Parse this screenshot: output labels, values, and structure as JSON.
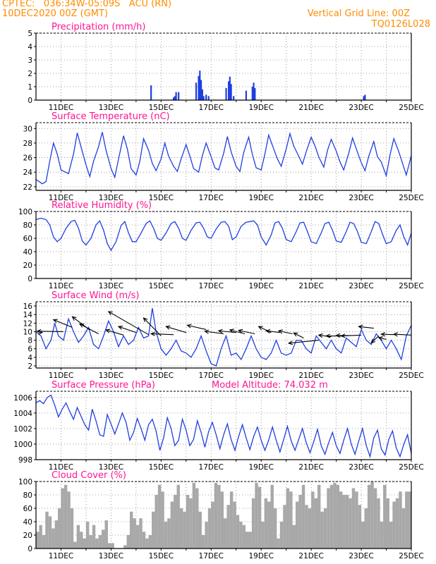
{
  "header": {
    "line1": "CPTEC:   036:34W-05:09S   ACU (RN)",
    "line2": "10DEC2020 00Z (GMT)",
    "right1": "Vertical Grid Line: 00Z",
    "right2": "TQ0126L028"
  },
  "x_tick_labels": [
    "11DEC",
    "13DEC",
    "15DEC",
    "17DEC",
    "19DEC",
    "21DEC",
    "23DEC",
    "25DEC"
  ],
  "colors": {
    "header": "#ff8c00",
    "title": "#ff1493",
    "series": "#1f3fe0",
    "cloud": "#a8a8a8",
    "arrow": "#000000"
  },
  "chart_data": [
    {
      "type": "bar",
      "title": "Precipitation (mm/h)",
      "ylim": [
        0,
        5
      ],
      "yticks": [
        0,
        1,
        2,
        3,
        4,
        5
      ],
      "xlim_days": [
        10,
        25
      ],
      "x": [
        14.6,
        15.5,
        15.55,
        15.6,
        15.7,
        16.4,
        16.5,
        16.55,
        16.6,
        16.65,
        16.7,
        16.8,
        16.9,
        17.6,
        17.7,
        17.75,
        17.8,
        17.9,
        18.4,
        18.65,
        18.7,
        18.75,
        23.1,
        23.15
      ],
      "values": [
        1.1,
        0.2,
        0.3,
        0.6,
        0.6,
        1.3,
        1.8,
        2.2,
        1.5,
        0.8,
        0.3,
        0.4,
        0.3,
        0.9,
        1.4,
        1.75,
        1.2,
        0.3,
        0.7,
        1.0,
        1.3,
        0.9,
        0.3,
        0.4
      ]
    },
    {
      "type": "line",
      "title": "Surface Temperature (nC)",
      "ylim": [
        21.5,
        30.8
      ],
      "yticks": [
        22,
        24,
        26,
        28,
        30
      ],
      "xlim_days": [
        10,
        25
      ],
      "x": [
        10,
        10.25,
        10.4,
        10.55,
        10.7,
        10.85,
        11.0,
        11.3,
        11.5,
        11.65,
        11.8,
        12.0,
        12.15,
        12.3,
        12.5,
        12.65,
        12.8,
        13.0,
        13.15,
        13.3,
        13.5,
        13.65,
        13.8,
        14.0,
        14.15,
        14.3,
        14.5,
        14.65,
        14.8,
        15.0,
        15.15,
        15.3,
        15.5,
        15.65,
        15.8,
        16.0,
        16.15,
        16.3,
        16.5,
        16.65,
        16.8,
        17.0,
        17.15,
        17.3,
        17.5,
        17.65,
        17.8,
        18.0,
        18.15,
        18.3,
        18.5,
        18.65,
        18.8,
        19.0,
        19.15,
        19.3,
        19.5,
        19.65,
        19.8,
        20.0,
        20.15,
        20.3,
        20.5,
        20.65,
        20.8,
        21.0,
        21.15,
        21.3,
        21.5,
        21.65,
        21.8,
        22.0,
        22.15,
        22.3,
        22.5,
        22.65,
        22.8,
        23.0,
        23.15,
        23.3,
        23.5,
        23.65,
        23.8,
        24.0,
        24.15,
        24.3,
        24.5,
        24.65,
        24.8,
        25.0
      ],
      "values": [
        23,
        22.4,
        22.7,
        25.5,
        28,
        26.5,
        24.3,
        23.8,
        26.5,
        29.4,
        27.5,
        25,
        23.4,
        25.5,
        27.5,
        29.5,
        27,
        24.5,
        23.3,
        25.8,
        29,
        27.2,
        24.5,
        23.6,
        25.5,
        28.6,
        27,
        25.2,
        24.2,
        25.8,
        28,
        26.2,
        24.8,
        24.1,
        25.8,
        27.8,
        26.2,
        24.5,
        24,
        26.3,
        28,
        26.1,
        24.6,
        24.3,
        26.6,
        28.9,
        26.8,
        24.8,
        24.1,
        26.7,
        28.8,
        26.4,
        24.6,
        24.3,
        26.5,
        29.1,
        27.2,
        25.8,
        24.8,
        27.2,
        29.3,
        27.6,
        26.2,
        25.1,
        26.8,
        28.8,
        27.6,
        26.1,
        24.7,
        27,
        28.5,
        26.9,
        25.4,
        24.3,
        26.6,
        28.7,
        27.2,
        25.3,
        24.2,
        26.2,
        28.2,
        26.1,
        25.4,
        23.5,
        26.4,
        28.6,
        26.8,
        25.2,
        23.6,
        26.3
      ]
    },
    {
      "type": "line",
      "title": "Relative Humidity (%)",
      "ylim": [
        0,
        100
      ],
      "yticks": [
        0,
        20,
        40,
        60,
        80,
        100
      ],
      "xlim_days": [
        10,
        25
      ],
      "x": [
        10,
        10.2,
        10.4,
        10.55,
        10.7,
        10.85,
        11.0,
        11.2,
        11.4,
        11.55,
        11.7,
        11.85,
        12.0,
        12.2,
        12.4,
        12.55,
        12.7,
        12.85,
        13.0,
        13.2,
        13.4,
        13.55,
        13.7,
        13.85,
        14.0,
        14.2,
        14.4,
        14.55,
        14.7,
        14.85,
        15.0,
        15.2,
        15.4,
        15.55,
        15.7,
        15.85,
        16.0,
        16.2,
        16.4,
        16.55,
        16.7,
        16.85,
        17.0,
        17.2,
        17.4,
        17.55,
        17.7,
        17.85,
        18.0,
        18.2,
        18.4,
        18.55,
        18.7,
        18.85,
        19.0,
        19.2,
        19.4,
        19.55,
        19.7,
        19.85,
        20.0,
        20.2,
        20.4,
        20.55,
        20.7,
        20.85,
        21.0,
        21.2,
        21.4,
        21.55,
        21.7,
        21.85,
        22.0,
        22.2,
        22.4,
        22.55,
        22.7,
        22.85,
        23.0,
        23.2,
        23.4,
        23.55,
        23.7,
        23.85,
        24.0,
        24.2,
        24.4,
        24.55,
        24.7,
        24.85,
        25.0
      ],
      "values": [
        88,
        90,
        88,
        80,
        62,
        55,
        60,
        75,
        85,
        87,
        75,
        56,
        50,
        60,
        80,
        86,
        72,
        52,
        42,
        55,
        79,
        85,
        68,
        55,
        55,
        68,
        82,
        86,
        75,
        60,
        57,
        68,
        82,
        85,
        75,
        60,
        57,
        72,
        83,
        84,
        75,
        62,
        60,
        74,
        84,
        85,
        78,
        58,
        62,
        78,
        84,
        85,
        86,
        80,
        62,
        50,
        65,
        83,
        85,
        75,
        58,
        55,
        70,
        83,
        84,
        70,
        55,
        52,
        68,
        82,
        84,
        72,
        56,
        54,
        70,
        84,
        82,
        70,
        54,
        52,
        70,
        85,
        82,
        66,
        52,
        55,
        72,
        80,
        62,
        50,
        68
      ]
    },
    {
      "type": "line",
      "title": "Surface Wind (m/s)",
      "ylim": [
        1.5,
        17
      ],
      "yticks": [
        2,
        4,
        6,
        8,
        10,
        12,
        14,
        16
      ],
      "xlim_days": [
        10,
        25
      ],
      "x": [
        10,
        10.2,
        10.4,
        10.6,
        10.75,
        10.9,
        11.1,
        11.3,
        11.5,
        11.7,
        11.9,
        12.1,
        12.3,
        12.5,
        12.7,
        12.9,
        13.1,
        13.3,
        13.5,
        13.7,
        13.9,
        14.1,
        14.3,
        14.5,
        14.65,
        14.8,
        15.0,
        15.2,
        15.4,
        15.6,
        15.8,
        16.0,
        16.2,
        16.4,
        16.6,
        16.8,
        17.0,
        17.2,
        17.4,
        17.6,
        17.8,
        18.0,
        18.2,
        18.4,
        18.6,
        18.8,
        19.0,
        19.2,
        19.4,
        19.6,
        19.8,
        20.0,
        20.2,
        20.4,
        20.6,
        20.8,
        21.0,
        21.2,
        21.4,
        21.6,
        21.8,
        22.0,
        22.2,
        22.4,
        22.6,
        22.8,
        23.0,
        23.2,
        23.4,
        23.6,
        23.8,
        24.0,
        24.2,
        24.4,
        24.6,
        24.8,
        25.0
      ],
      "values": [
        10,
        9,
        6,
        8,
        12,
        9,
        8,
        13,
        10,
        7.5,
        9,
        11,
        7,
        6,
        9,
        12.5,
        10,
        6.5,
        9,
        7,
        8,
        11,
        8.5,
        9,
        15.5,
        10,
        6,
        4.5,
        6,
        8,
        5.5,
        5,
        4,
        6,
        9,
        5.5,
        2.5,
        2,
        6,
        9,
        4.5,
        5,
        3.5,
        6,
        9,
        6,
        4,
        3.5,
        5,
        8,
        5,
        4.5,
        5,
        8,
        8,
        6,
        5,
        9,
        7.5,
        6,
        8,
        6,
        5,
        8.5,
        7.5,
        6.5,
        10.5,
        8,
        7,
        9.5,
        8,
        6,
        8,
        6,
        3.5,
        9,
        11.5
      ],
      "arrows": [
        {
          "x": 10.25,
          "y": 9.8,
          "to_x": 10.25,
          "to_y": 9.8
        },
        {
          "x": 11.1,
          "y": 10,
          "to_x": 10.05,
          "to_y": 10.1
        },
        {
          "x": 11.45,
          "y": 11,
          "to_x": 10.7,
          "to_y": 12.8
        },
        {
          "x": 12.15,
          "y": 10.4,
          "to_x": 11.45,
          "to_y": 13.5
        },
        {
          "x": 12.5,
          "y": 9.5,
          "to_x": 11.75,
          "to_y": 11.8
        },
        {
          "x": 13.5,
          "y": 9.2,
          "to_x": 12.8,
          "to_y": 10.4
        },
        {
          "x": 14.0,
          "y": 9.8,
          "to_x": 13.3,
          "to_y": 11.2
        },
        {
          "x": 14.5,
          "y": 9.3,
          "to_x": 12.9,
          "to_y": 14.7
        },
        {
          "x": 15.0,
          "y": 9.0,
          "to_x": 14.3,
          "to_y": 13.2
        },
        {
          "x": 15.5,
          "y": 9.3,
          "to_x": 14.6,
          "to_y": 9.5
        },
        {
          "x": 16.0,
          "y": 9.8,
          "to_x": 15.2,
          "to_y": 11.2
        },
        {
          "x": 16.8,
          "y": 10.5,
          "to_x": 16.05,
          "to_y": 11.5
        },
        {
          "x": 17.5,
          "y": 9.5,
          "to_x": 16.75,
          "to_y": 10.1
        },
        {
          "x": 18.0,
          "y": 9.8,
          "to_x": 17.3,
          "to_y": 10.2
        },
        {
          "x": 18.35,
          "y": 9.5,
          "to_x": 17.75,
          "to_y": 10.4
        },
        {
          "x": 18.75,
          "y": 9.5,
          "to_x": 18.1,
          "to_y": 10.3
        },
        {
          "x": 19.4,
          "y": 9.8,
          "to_x": 18.9,
          "to_y": 11.2
        },
        {
          "x": 19.75,
          "y": 9.8,
          "to_x": 19.2,
          "to_y": 10.2
        },
        {
          "x": 20.25,
          "y": 9.5,
          "to_x": 19.7,
          "to_y": 10.2
        },
        {
          "x": 20.7,
          "y": 8.5,
          "to_x": 20.3,
          "to_y": 9.7
        },
        {
          "x": 21.3,
          "y": 8.0,
          "to_x": 20.1,
          "to_y": 7.3
        },
        {
          "x": 21.8,
          "y": 8.8,
          "to_x": 21.3,
          "to_y": 9.2
        },
        {
          "x": 22.2,
          "y": 9.0,
          "to_x": 21.6,
          "to_y": 9.0
        },
        {
          "x": 22.6,
          "y": 9.1,
          "to_x": 22.0,
          "to_y": 9.1
        },
        {
          "x": 23.0,
          "y": 9.2,
          "to_x": 22.2,
          "to_y": 9.0
        },
        {
          "x": 23.5,
          "y": 10.8,
          "to_x": 22.9,
          "to_y": 11.2
        },
        {
          "x": 23.7,
          "y": 9.0,
          "to_x": 23.4,
          "to_y": 7.4
        },
        {
          "x": 24.0,
          "y": 8.2,
          "to_x": 23.7,
          "to_y": 8.6
        },
        {
          "x": 24.3,
          "y": 9.3,
          "to_x": 23.8,
          "to_y": 9.4
        },
        {
          "x": 25.0,
          "y": 9.2,
          "to_x": 24.3,
          "to_y": 9.4
        }
      ]
    },
    {
      "type": "line",
      "title": "Surface Pressure (hPa)",
      "annotation": "Model Altitude: 74.032 m",
      "ylim": [
        998,
        1006.8
      ],
      "yticks": [
        998,
        1000,
        1002,
        1004,
        1006
      ],
      "xlim_days": [
        10,
        25
      ],
      "x": [
        10,
        10.15,
        10.3,
        10.45,
        10.6,
        10.75,
        10.9,
        11.05,
        11.2,
        11.35,
        11.5,
        11.65,
        11.8,
        11.95,
        12.1,
        12.25,
        12.4,
        12.55,
        12.7,
        12.85,
        13.0,
        13.15,
        13.3,
        13.45,
        13.6,
        13.75,
        13.9,
        14.05,
        14.2,
        14.35,
        14.5,
        14.65,
        14.8,
        14.95,
        15.1,
        15.25,
        15.4,
        15.55,
        15.7,
        15.85,
        16.0,
        16.15,
        16.3,
        16.45,
        16.6,
        16.75,
        16.9,
        17.05,
        17.2,
        17.35,
        17.5,
        17.65,
        17.8,
        17.95,
        18.1,
        18.25,
        18.4,
        18.55,
        18.7,
        18.85,
        19.0,
        19.15,
        19.3,
        19.45,
        19.6,
        19.75,
        19.9,
        20.05,
        20.2,
        20.35,
        20.5,
        20.65,
        20.8,
        20.95,
        21.1,
        21.25,
        21.4,
        21.55,
        21.7,
        21.85,
        22.0,
        22.15,
        22.3,
        22.45,
        22.6,
        22.75,
        22.9,
        23.05,
        23.2,
        23.35,
        23.5,
        23.65,
        23.8,
        23.95,
        24.1,
        24.25,
        24.4,
        24.55,
        24.7,
        24.85,
        25.0
      ],
      "values": [
        1005.3,
        1005.6,
        1005.2,
        1006.0,
        1006.3,
        1005.0,
        1003.5,
        1004.5,
        1005.3,
        1004.2,
        1003.2,
        1004.7,
        1003.6,
        1002.5,
        1001.8,
        1004.5,
        1003.0,
        1001.2,
        1001.0,
        1003.8,
        1002.6,
        1001.3,
        1002.6,
        1004.0,
        1002.8,
        1000.5,
        1001.5,
        1003.3,
        1002.0,
        1000.5,
        1002.5,
        1003.2,
        1001.7,
        999.2,
        1000.8,
        1003.4,
        1002.0,
        999.8,
        1000.5,
        1003.2,
        1001.8,
        999.8,
        1000.6,
        1003.0,
        1001.5,
        999.6,
        1001.6,
        1002.8,
        1001.2,
        999.4,
        1001.2,
        1002.6,
        1000.6,
        999.2,
        1001.0,
        1002.5,
        1000.8,
        999.3,
        1001.0,
        1002.2,
        1000.5,
        999.2,
        1000.5,
        1002.2,
        1000.5,
        999.0,
        1000.6,
        1002.3,
        1000.4,
        999.2,
        1000.6,
        1002.0,
        1000.2,
        998.9,
        1000.3,
        1001.9,
        999.8,
        998.7,
        1000.2,
        1001.5,
        999.8,
        998.8,
        1000.5,
        1002.0,
        1000.0,
        998.7,
        1000.4,
        1002.0,
        999.8,
        998.4,
        1000.8,
        1001.8,
        999.4,
        998.6,
        1000.6,
        1001.7,
        999.5,
        998.4,
        1000.0,
        1001.2,
        998.8
      ]
    },
    {
      "type": "bar",
      "title": "Cloud Cover (%)",
      "ylim": [
        0,
        100
      ],
      "yticks": [
        0,
        20,
        40,
        60,
        80,
        100
      ],
      "xlim_days": [
        10,
        25
      ],
      "x": [
        10.0,
        10.125,
        10.25,
        10.375,
        10.5,
        10.625,
        10.75,
        10.875,
        11.0,
        11.125,
        11.25,
        11.375,
        11.5,
        11.625,
        11.75,
        11.875,
        12.0,
        12.125,
        12.25,
        12.375,
        12.5,
        12.625,
        12.75,
        12.875,
        13.0,
        13.125,
        13.25,
        13.375,
        13.5,
        13.625,
        13.75,
        13.875,
        14.0,
        14.125,
        14.25,
        14.375,
        14.5,
        14.625,
        14.75,
        14.875,
        15.0,
        15.125,
        15.25,
        15.375,
        15.5,
        15.625,
        15.75,
        15.875,
        16.0,
        16.125,
        16.25,
        16.375,
        16.5,
        16.625,
        16.75,
        16.875,
        17.0,
        17.125,
        17.25,
        17.375,
        17.5,
        17.625,
        17.75,
        17.875,
        18.0,
        18.125,
        18.25,
        18.375,
        18.5,
        18.625,
        18.75,
        18.875,
        19.0,
        19.125,
        19.25,
        19.375,
        19.5,
        19.625,
        19.75,
        19.875,
        20.0,
        20.125,
        20.25,
        20.375,
        20.5,
        20.625,
        20.75,
        20.875,
        21.0,
        21.125,
        21.25,
        21.375,
        21.5,
        21.625,
        21.75,
        21.875,
        22.0,
        22.125,
        22.25,
        22.375,
        22.5,
        22.625,
        22.75,
        22.875,
        23.0,
        23.125,
        23.25,
        23.375,
        23.5,
        23.625,
        23.75,
        23.875,
        24.0,
        24.125,
        24.25,
        24.375,
        24.5,
        24.625,
        24.75,
        24.875
      ],
      "values": [
        25,
        35,
        20,
        55,
        48,
        30,
        42,
        60,
        90,
        95,
        85,
        60,
        10,
        35,
        25,
        15,
        40,
        20,
        35,
        15,
        20,
        28,
        42,
        8,
        8,
        0,
        0,
        0,
        5,
        20,
        55,
        45,
        35,
        45,
        25,
        15,
        20,
        55,
        80,
        95,
        85,
        40,
        45,
        70,
        80,
        95,
        60,
        55,
        80,
        75,
        98,
        90,
        55,
        20,
        40,
        60,
        70,
        98,
        95,
        85,
        45,
        65,
        85,
        70,
        50,
        40,
        35,
        25,
        25,
        75,
        98,
        92,
        40,
        75,
        70,
        95,
        60,
        15,
        40,
        65,
        90,
        85,
        35,
        70,
        80,
        95,
        65,
        60,
        85,
        75,
        95,
        55,
        60,
        90,
        95,
        98,
        95,
        85,
        80,
        80,
        75,
        90,
        85,
        65,
        40,
        60,
        95,
        100,
        90,
        75,
        40,
        95,
        75,
        40,
        70,
        75,
        85,
        60,
        85,
        85
      ]
    }
  ]
}
